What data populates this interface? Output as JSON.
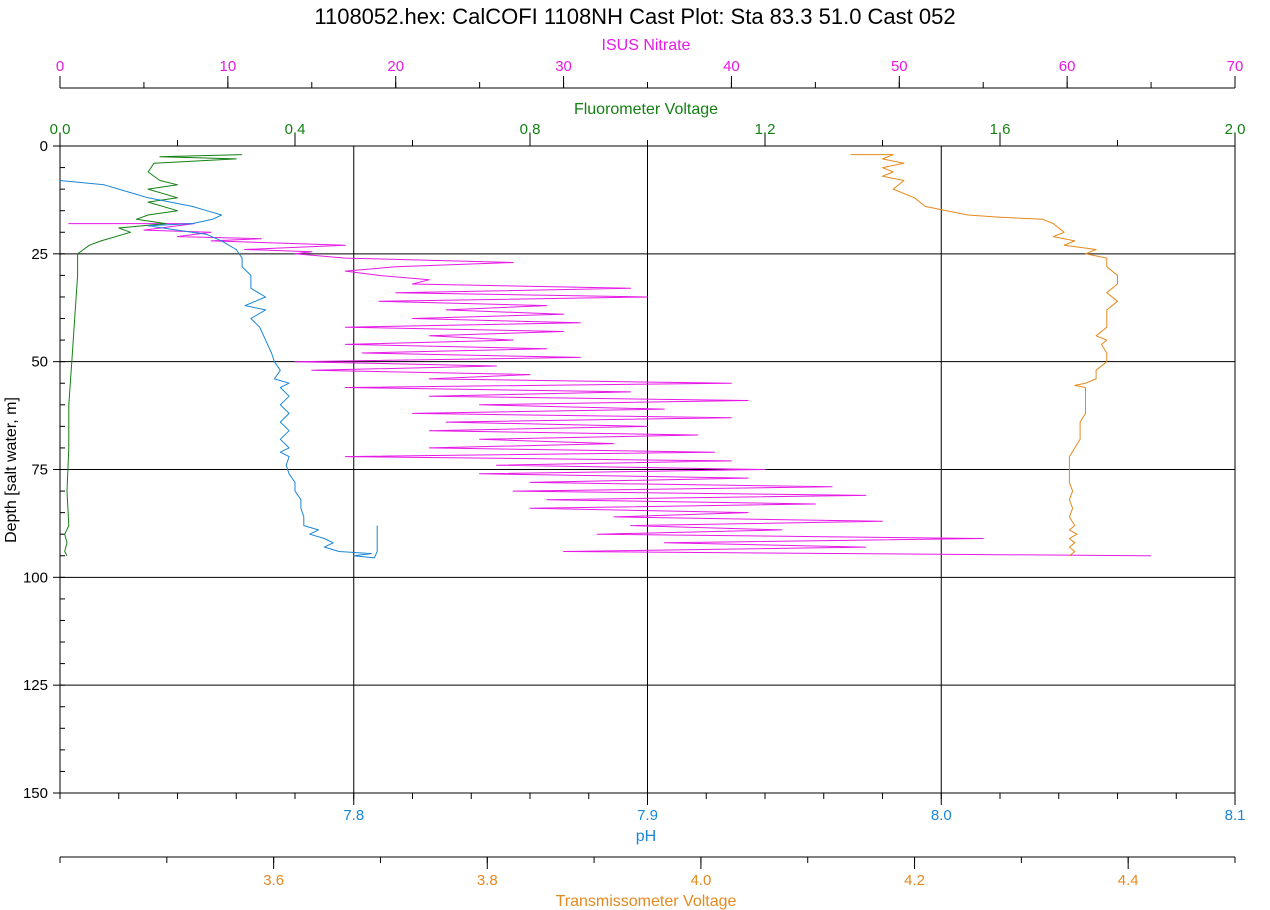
{
  "chart_data": {
    "type": "line",
    "title": "1108052.hex: CalCOFI 1108NH Cast Plot: Sta 83.3  51.0  Cast 052",
    "y_axis": {
      "label": "Depth [salt water, m]",
      "range": [
        0,
        150
      ],
      "inverted": true,
      "ticks": [
        "0",
        "25",
        "50",
        "75",
        "100",
        "125",
        "150"
      ],
      "minor_step": 5,
      "grid": true
    },
    "x_axes": [
      {
        "id": "nitrate",
        "label": "ISUS Nitrate",
        "position": "top",
        "color": "#e619e6",
        "range": [
          0,
          70
        ],
        "ticks": [
          "0",
          "10",
          "20",
          "30",
          "40",
          "50",
          "60",
          "70"
        ],
        "minor_step": 5
      },
      {
        "id": "fluor",
        "label": "Fluorometer Voltage",
        "position": "top",
        "color": "#138013",
        "range": [
          0,
          2.0
        ],
        "ticks": [
          "0.0",
          "0.4",
          "0.8",
          "1.2",
          "1.6",
          "2.0"
        ],
        "minor_step": 0.2
      },
      {
        "id": "ph",
        "label": "pH",
        "position": "bottom",
        "color": "#1a86d6",
        "range": [
          7.7,
          8.1
        ],
        "ticks": [
          "7.8",
          "7.9",
          "8.0",
          "8.1"
        ],
        "minor_step": 0.02,
        "grid": true
      },
      {
        "id": "trans",
        "label": "Transmissometer Voltage",
        "position": "bottom",
        "color": "#e5891e",
        "range": [
          3.4,
          4.5
        ],
        "ticks": [
          "3.6",
          "3.8",
          "4.0",
          "4.2",
          "4.4"
        ],
        "minor_step": 0.1
      }
    ],
    "series": [
      {
        "name": "ISUS Nitrate",
        "axis": "nitrate",
        "color": "#e619e6",
        "points": [
          [
            0.5,
            18
          ],
          [
            8,
            18
          ],
          [
            5,
            19.5
          ],
          [
            9,
            20
          ],
          [
            7,
            21
          ],
          [
            12,
            21.5
          ],
          [
            9,
            22
          ],
          [
            17,
            23
          ],
          [
            11,
            24
          ],
          [
            15,
            24.5
          ],
          [
            14,
            25
          ],
          [
            17,
            26
          ],
          [
            27,
            27
          ],
          [
            20,
            28
          ],
          [
            17,
            29
          ],
          [
            19,
            30
          ],
          [
            22,
            31
          ],
          [
            21,
            32
          ],
          [
            34,
            33
          ],
          [
            20,
            34
          ],
          [
            35,
            35
          ],
          [
            19,
            36
          ],
          [
            29,
            37
          ],
          [
            23,
            38
          ],
          [
            30,
            39
          ],
          [
            21,
            40
          ],
          [
            31,
            41
          ],
          [
            17,
            42
          ],
          [
            30,
            43
          ],
          [
            22,
            44
          ],
          [
            27,
            45
          ],
          [
            17,
            46
          ],
          [
            29,
            47
          ],
          [
            18,
            48
          ],
          [
            31,
            49
          ],
          [
            14,
            50
          ],
          [
            26,
            51
          ],
          [
            15,
            52
          ],
          [
            28,
            53
          ],
          [
            22,
            54
          ],
          [
            40,
            55
          ],
          [
            17,
            56
          ],
          [
            34,
            57
          ],
          [
            22,
            58
          ],
          [
            41,
            59
          ],
          [
            25,
            60
          ],
          [
            36,
            61
          ],
          [
            21,
            62
          ],
          [
            40,
            63
          ],
          [
            23,
            64
          ],
          [
            35,
            65
          ],
          [
            22,
            66
          ],
          [
            38,
            67
          ],
          [
            25,
            68
          ],
          [
            33,
            69
          ],
          [
            22,
            70
          ],
          [
            39,
            71
          ],
          [
            17,
            72
          ],
          [
            40,
            73
          ],
          [
            26,
            74
          ],
          [
            42,
            75
          ],
          [
            25,
            76
          ],
          [
            41,
            77
          ],
          [
            28,
            78
          ],
          [
            46,
            79
          ],
          [
            27,
            80
          ],
          [
            48,
            81
          ],
          [
            29,
            82
          ],
          [
            45,
            83
          ],
          [
            28,
            84
          ],
          [
            41,
            85
          ],
          [
            33,
            86
          ],
          [
            49,
            87
          ],
          [
            34,
            88
          ],
          [
            43,
            89
          ],
          [
            32,
            90
          ],
          [
            55,
            91
          ],
          [
            36,
            92
          ],
          [
            48,
            93
          ],
          [
            30,
            94
          ],
          [
            65,
            95
          ]
        ]
      },
      {
        "name": "Fluorometer Voltage",
        "axis": "fluor",
        "color": "#138013",
        "points": [
          [
            0.31,
            2
          ],
          [
            0.17,
            2.5
          ],
          [
            0.3,
            3
          ],
          [
            0.16,
            4
          ],
          [
            0.15,
            6
          ],
          [
            0.17,
            8
          ],
          [
            0.2,
            9
          ],
          [
            0.15,
            10
          ],
          [
            0.2,
            12
          ],
          [
            0.15,
            13
          ],
          [
            0.2,
            15
          ],
          [
            0.15,
            16
          ],
          [
            0.13,
            17
          ],
          [
            0.18,
            18
          ],
          [
            0.1,
            19
          ],
          [
            0.12,
            20
          ],
          [
            0.07,
            22
          ],
          [
            0.05,
            23
          ],
          [
            0.04,
            24
          ],
          [
            0.03,
            25
          ],
          [
            0.03,
            30
          ],
          [
            0.025,
            40
          ],
          [
            0.02,
            50
          ],
          [
            0.015,
            60
          ],
          [
            0.015,
            70
          ],
          [
            0.012,
            80
          ],
          [
            0.015,
            88
          ],
          [
            0.008,
            90
          ],
          [
            0.012,
            92
          ],
          [
            0.008,
            94
          ],
          [
            0.012,
            95
          ]
        ]
      },
      {
        "name": "pH",
        "axis": "ph",
        "color": "#1a86d6",
        "points": [
          [
            7.7,
            8
          ],
          [
            7.715,
            9
          ],
          [
            7.72,
            10
          ],
          [
            7.73,
            12
          ],
          [
            7.745,
            14
          ],
          [
            7.75,
            15
          ],
          [
            7.755,
            16
          ],
          [
            7.752,
            17
          ],
          [
            7.745,
            18
          ],
          [
            7.73,
            18.5
          ],
          [
            7.735,
            19
          ],
          [
            7.745,
            20
          ],
          [
            7.75,
            20.5
          ],
          [
            7.755,
            22
          ],
          [
            7.76,
            24
          ],
          [
            7.762,
            26
          ],
          [
            7.762,
            28
          ],
          [
            7.765,
            30
          ],
          [
            7.765,
            33
          ],
          [
            7.77,
            35
          ],
          [
            7.763,
            37
          ],
          [
            7.77,
            38
          ],
          [
            7.765,
            40
          ],
          [
            7.768,
            42
          ],
          [
            7.77,
            45
          ],
          [
            7.772,
            48
          ],
          [
            7.773,
            50
          ],
          [
            7.775,
            52
          ],
          [
            7.773,
            54
          ],
          [
            7.778,
            55
          ],
          [
            7.775,
            56
          ],
          [
            7.778,
            58
          ],
          [
            7.775,
            60
          ],
          [
            7.778,
            62
          ],
          [
            7.775,
            64
          ],
          [
            7.778,
            66
          ],
          [
            7.775,
            68
          ],
          [
            7.778,
            70
          ],
          [
            7.775,
            71
          ],
          [
            7.778,
            72
          ],
          [
            7.777,
            74
          ],
          [
            7.778,
            76
          ],
          [
            7.78,
            78
          ],
          [
            7.78,
            80
          ],
          [
            7.782,
            82
          ],
          [
            7.782,
            84
          ],
          [
            7.783,
            86
          ],
          [
            7.783,
            88
          ],
          [
            7.788,
            89
          ],
          [
            7.785,
            90
          ],
          [
            7.79,
            91
          ],
          [
            7.793,
            92
          ],
          [
            7.79,
            93
          ],
          [
            7.795,
            94
          ],
          [
            7.806,
            94.5
          ],
          [
            7.8,
            95
          ],
          [
            7.807,
            95.5
          ],
          [
            7.808,
            94
          ],
          [
            7.808,
            88
          ]
        ]
      },
      {
        "name": "Transmissometer Voltage",
        "axis": "trans",
        "color": "#e5891e",
        "points": [
          [
            4.14,
            2
          ],
          [
            4.18,
            2
          ],
          [
            4.17,
            3
          ],
          [
            4.19,
            4
          ],
          [
            4.17,
            5
          ],
          [
            4.18,
            6
          ],
          [
            4.17,
            7
          ],
          [
            4.19,
            8
          ],
          [
            4.18,
            10
          ],
          [
            4.2,
            12
          ],
          [
            4.21,
            14
          ],
          [
            4.23,
            15
          ],
          [
            4.25,
            16
          ],
          [
            4.28,
            16.5
          ],
          [
            4.32,
            17
          ],
          [
            4.33,
            18
          ],
          [
            4.34,
            20
          ],
          [
            4.33,
            21
          ],
          [
            4.35,
            22
          ],
          [
            4.34,
            23
          ],
          [
            4.37,
            24
          ],
          [
            4.36,
            25
          ],
          [
            4.38,
            26
          ],
          [
            4.38,
            28
          ],
          [
            4.39,
            30
          ],
          [
            4.39,
            32
          ],
          [
            4.38,
            34
          ],
          [
            4.39,
            36
          ],
          [
            4.38,
            38
          ],
          [
            4.38,
            40
          ],
          [
            4.38,
            42
          ],
          [
            4.37,
            44
          ],
          [
            4.38,
            45
          ],
          [
            4.375,
            46
          ],
          [
            4.38,
            48
          ],
          [
            4.38,
            50
          ],
          [
            4.37,
            52
          ],
          [
            4.37,
            54
          ],
          [
            4.36,
            55
          ],
          [
            4.35,
            55.5
          ],
          [
            4.36,
            56
          ],
          [
            4.36,
            58
          ],
          [
            4.36,
            60
          ],
          [
            4.36,
            62
          ],
          [
            4.355,
            64
          ],
          [
            4.355,
            66
          ],
          [
            4.355,
            68
          ],
          [
            4.35,
            70
          ],
          [
            4.345,
            72
          ],
          [
            4.345,
            74
          ],
          [
            4.345,
            76
          ],
          [
            4.345,
            78
          ],
          [
            4.348,
            80
          ],
          [
            4.345,
            82
          ],
          [
            4.348,
            84
          ],
          [
            4.345,
            86
          ],
          [
            4.35,
            88
          ],
          [
            4.345,
            89
          ],
          [
            4.352,
            90
          ],
          [
            4.345,
            91
          ],
          [
            4.35,
            92
          ],
          [
            4.345,
            93
          ],
          [
            4.35,
            94
          ],
          [
            4.345,
            95
          ]
        ]
      }
    ]
  }
}
